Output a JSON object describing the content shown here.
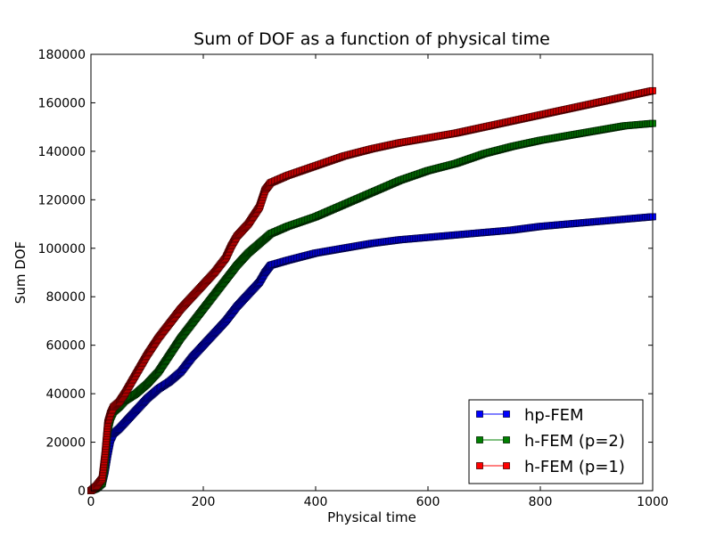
{
  "chart_data": {
    "type": "line",
    "title": "Sum of DOF as a function of physical time",
    "xlabel": "Physical time",
    "ylabel": "Sum DOF",
    "xlim": [
      0,
      1000
    ],
    "ylim": [
      0,
      180000
    ],
    "xticks": [
      0,
      200,
      400,
      600,
      800,
      1000
    ],
    "yticks": [
      0,
      20000,
      40000,
      60000,
      80000,
      100000,
      120000,
      140000,
      160000,
      180000
    ],
    "grid": false,
    "legend": "lower-right",
    "marker": "square",
    "series": [
      {
        "name": "hp-FEM",
        "color": "#0000ff",
        "x": [
          0,
          10,
          20,
          25,
          30,
          35,
          40,
          50,
          60,
          80,
          100,
          120,
          140,
          160,
          180,
          200,
          220,
          240,
          260,
          280,
          300,
          310,
          320,
          350,
          400,
          450,
          500,
          550,
          600,
          650,
          700,
          750,
          800,
          850,
          900,
          950,
          1000
        ],
        "y": [
          0,
          1000,
          3000,
          8000,
          15000,
          21000,
          23500,
          25500,
          28000,
          33000,
          38000,
          42000,
          45000,
          49000,
          55000,
          60000,
          65000,
          70000,
          76000,
          81000,
          86000,
          90000,
          93000,
          95000,
          98000,
          100000,
          102000,
          103500,
          104500,
          105500,
          106500,
          107500,
          109000,
          110000,
          111000,
          112000,
          113000
        ]
      },
      {
        "name": "h-FEM (p=2)",
        "color": "#008000",
        "x": [
          0,
          10,
          20,
          25,
          30,
          35,
          40,
          50,
          60,
          80,
          100,
          120,
          140,
          160,
          180,
          200,
          220,
          240,
          260,
          280,
          300,
          320,
          350,
          400,
          450,
          500,
          550,
          600,
          650,
          700,
          750,
          800,
          850,
          900,
          950,
          1000
        ],
        "y": [
          0,
          1000,
          3000,
          10000,
          25000,
          30000,
          32500,
          34500,
          37000,
          40000,
          44000,
          49000,
          56000,
          63000,
          69000,
          75000,
          81000,
          87000,
          93000,
          98000,
          102000,
          106000,
          109000,
          113000,
          118000,
          123000,
          128000,
          132000,
          135000,
          139000,
          142000,
          144500,
          146500,
          148500,
          150500,
          151500
        ]
      },
      {
        "name": "h-FEM (p=1)",
        "color": "#ff0000",
        "x": [
          0,
          10,
          20,
          25,
          30,
          35,
          40,
          50,
          60,
          80,
          100,
          120,
          140,
          160,
          180,
          200,
          220,
          240,
          250,
          260,
          280,
          300,
          310,
          320,
          350,
          400,
          450,
          500,
          550,
          600,
          650,
          700,
          750,
          800,
          850,
          900,
          950,
          1000
        ],
        "y": [
          0,
          2000,
          5000,
          15000,
          28000,
          32000,
          34500,
          36500,
          40000,
          48000,
          56000,
          63000,
          69000,
          75000,
          80000,
          85000,
          90000,
          96000,
          101000,
          105000,
          110000,
          117000,
          124000,
          127000,
          130000,
          134000,
          138000,
          141000,
          143500,
          145500,
          147500,
          150000,
          152500,
          155000,
          157500,
          160000,
          162500,
          165000
        ]
      }
    ]
  }
}
